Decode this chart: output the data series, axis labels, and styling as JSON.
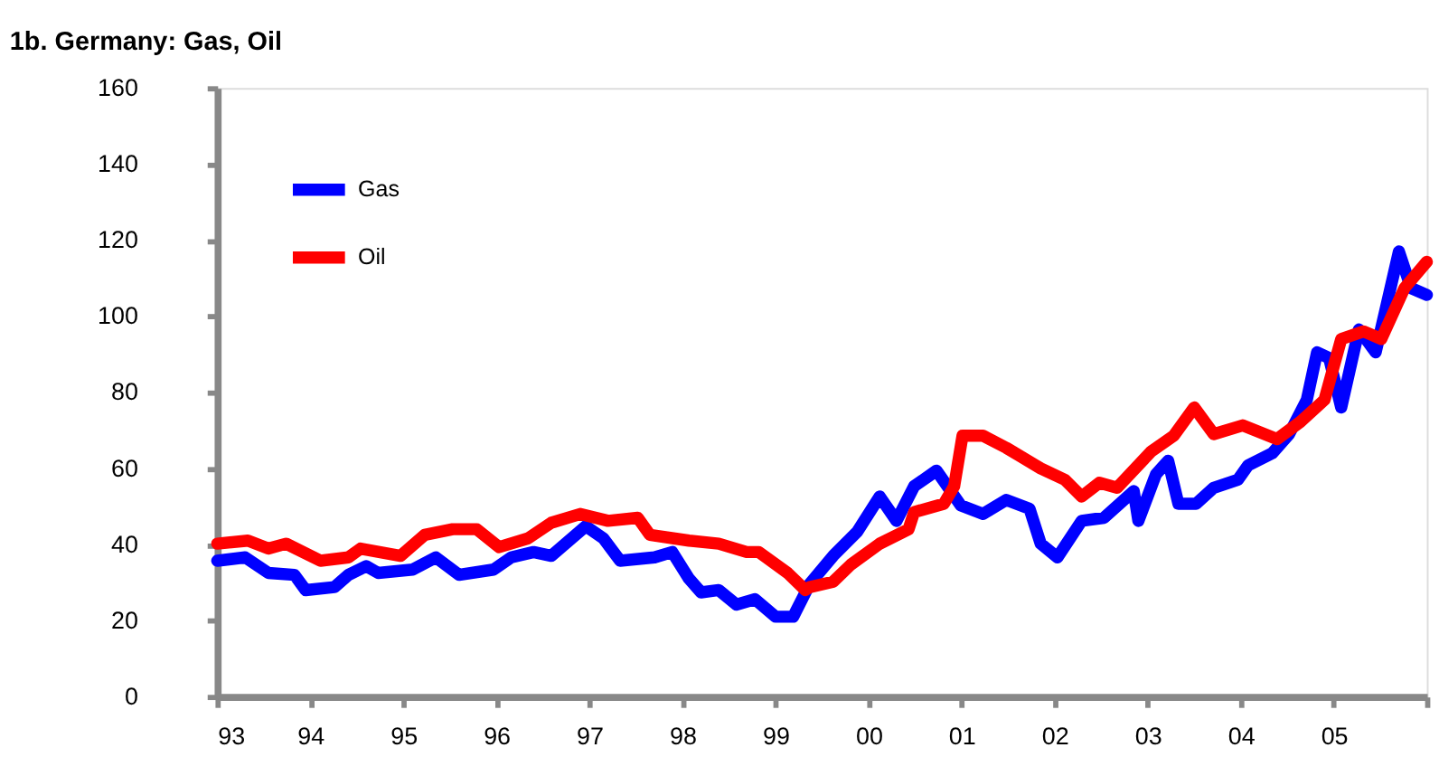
{
  "chart_data": {
    "type": "line",
    "title": "1b. Germany: Gas, Oil",
    "xlim": [
      1993,
      2006
    ],
    "ylim": [
      0,
      160
    ],
    "xticks": [
      {
        "value": 1993,
        "label": "93"
      },
      {
        "value": 1994,
        "label": "94"
      },
      {
        "value": 1995,
        "label": "95"
      },
      {
        "value": 1996,
        "label": "96"
      },
      {
        "value": 1997,
        "label": "97"
      },
      {
        "value": 1998,
        "label": "98"
      },
      {
        "value": 1999,
        "label": "99"
      },
      {
        "value": 2000,
        "label": "00"
      },
      {
        "value": 2001,
        "label": "01"
      },
      {
        "value": 2002,
        "label": "02"
      },
      {
        "value": 2003,
        "label": "03"
      },
      {
        "value": 2004,
        "label": "04"
      },
      {
        "value": 2005,
        "label": "05"
      },
      {
        "value": 2006,
        "label": null
      }
    ],
    "yticks": [
      0,
      20,
      40,
      60,
      80,
      100,
      120,
      140,
      160
    ],
    "grid": false,
    "legend": "top left",
    "marker": "none",
    "line_style": "solid",
    "series": [
      {
        "name": "Gas",
        "color": "#0000ff",
        "x": [
          1993.0,
          1993.3,
          1993.55,
          1993.83,
          1993.95,
          1994.26,
          1994.41,
          1994.6,
          1994.73,
          1995.1,
          1995.35,
          1995.6,
          1995.97,
          1996.16,
          1996.4,
          1996.59,
          1996.96,
          1997.15,
          1997.33,
          1997.7,
          1997.89,
          1998.07,
          1998.2,
          1998.39,
          1998.58,
          1998.78,
          1999.0,
          1999.19,
          1999.37,
          1999.62,
          1999.88,
          2000.12,
          2000.3,
          2000.49,
          2000.73,
          2000.99,
          2001.23,
          2001.48,
          2001.73,
          2001.85,
          2002.03,
          2002.29,
          2002.53,
          2002.85,
          2002.9,
          2003.09,
          2003.22,
          2003.33,
          2003.52,
          2003.71,
          2003.97,
          2004.08,
          2004.34,
          2004.52,
          2004.71,
          2004.82,
          2004.95,
          2005.08,
          2005.27,
          2005.45,
          2005.7,
          2005.83,
          2006.0
        ],
        "values": [
          35.7,
          36.6,
          32.5,
          32,
          28,
          28.8,
          32,
          34.3,
          32.5,
          33.4,
          36.6,
          32,
          33.4,
          36.6,
          38,
          37,
          44.8,
          41.6,
          35.7,
          36.6,
          38,
          31,
          27.4,
          28,
          24.2,
          25.6,
          21,
          21,
          29.7,
          37,
          43.4,
          52.6,
          46.2,
          55.3,
          59.4,
          50.3,
          48,
          51.7,
          49.4,
          40.2,
          36.6,
          46.2,
          47,
          54,
          46.2,
          58.5,
          62,
          50.7,
          50.7,
          54.9,
          57,
          60.8,
          64,
          69,
          78,
          90.5,
          89,
          76,
          96.5,
          90.5,
          117,
          107.4,
          105.6
        ]
      },
      {
        "name": "Oil",
        "color": "#ff0000",
        "x": [
          1993.0,
          1993.33,
          1993.55,
          1993.74,
          1994.11,
          1994.41,
          1994.54,
          1994.97,
          1995.23,
          1995.53,
          1995.79,
          1996.03,
          1996.34,
          1996.59,
          1996.9,
          1997.2,
          1997.52,
          1997.65,
          1998.07,
          1998.39,
          1998.69,
          1998.82,
          1999.13,
          1999.32,
          1999.37,
          1999.62,
          1999.81,
          2000.12,
          2000.43,
          2000.49,
          2000.81,
          2000.92,
          2001.01,
          2001.23,
          2001.48,
          2001.85,
          2002.11,
          2002.29,
          2002.48,
          2002.67,
          2003.04,
          2003.28,
          2003.5,
          2003.71,
          2004.02,
          2004.39,
          2004.64,
          2004.9,
          2005.08,
          2005.32,
          2005.51,
          2005.76,
          2006.0
        ],
        "values": [
          40.2,
          41,
          38.9,
          40.2,
          35.7,
          36.6,
          38.9,
          37,
          42.5,
          44,
          44,
          39.3,
          41.6,
          45.7,
          48,
          46.2,
          47,
          42.5,
          41,
          40.2,
          38,
          38,
          32.5,
          28,
          28.8,
          30.2,
          34.7,
          40.2,
          44,
          48.5,
          50.7,
          55.3,
          68.6,
          68.6,
          65.4,
          60,
          57,
          52.6,
          56.2,
          54.9,
          64.5,
          68.6,
          76,
          69,
          71.3,
          67.7,
          72.2,
          78,
          94,
          96,
          94,
          107.4,
          114.3
        ]
      }
    ]
  }
}
